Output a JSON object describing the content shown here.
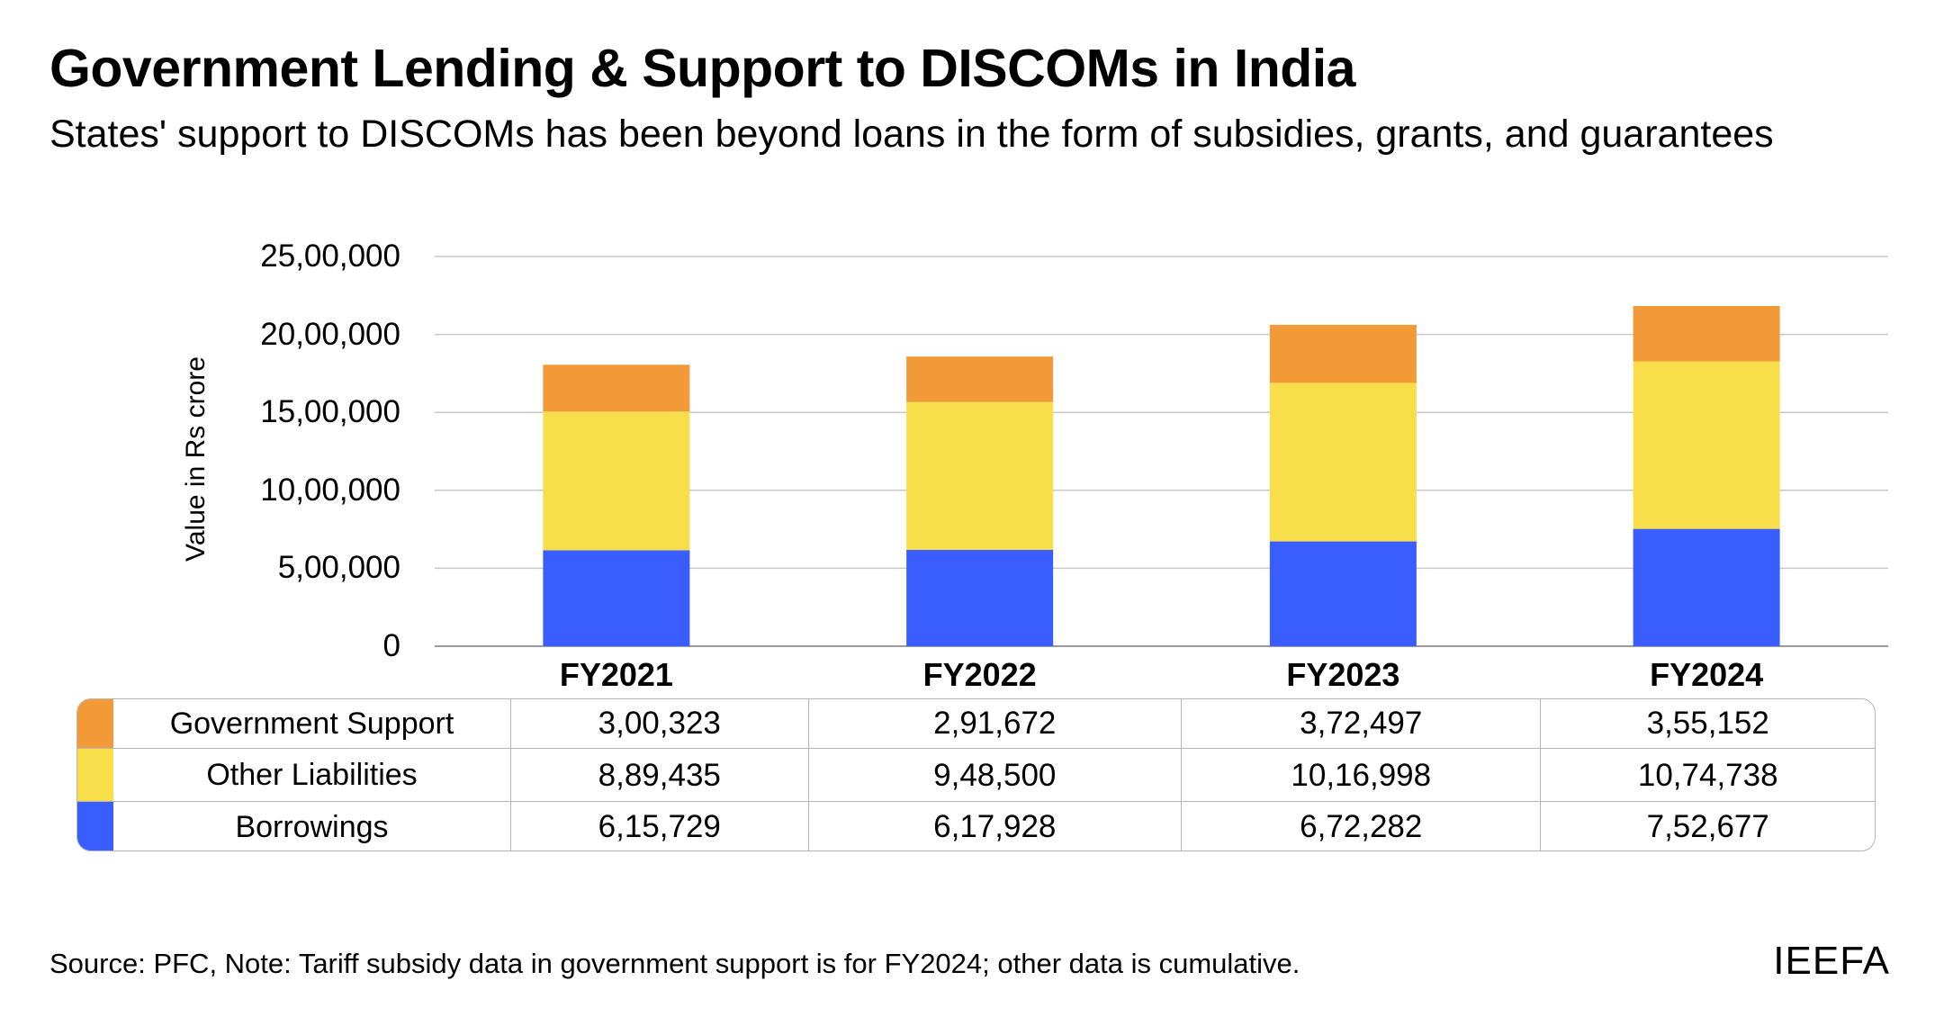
{
  "title": "Government Lending & Support to DISCOMs in India",
  "subtitle": "States' support to DISCOMs has been beyond loans in the form of subsidies, grants, and guarantees",
  "source": "Source: PFC, Note: Tariff subsidy data in government support is for FY2024; other data is cumulative.",
  "brand": "IEEFA",
  "colors": {
    "government_support": "#F29A38",
    "other_liabilities": "#F7DE4A",
    "borrowings": "#3A5DFF",
    "grid": "#c8c8c8"
  },
  "table": {
    "rows": [
      {
        "label": "Government Support",
        "values": [
          "3,00,323",
          "2,91,672",
          "3,72,497",
          "3,55,152"
        ]
      },
      {
        "label": "Other Liabilities",
        "values": [
          "8,89,435",
          "9,48,500",
          "10,16,998",
          "10,74,738"
        ]
      },
      {
        "label": "Borrowings",
        "values": [
          "6,15,729",
          "6,17,928",
          "6,72,282",
          "7,52,677"
        ]
      }
    ]
  },
  "chart_data": {
    "type": "bar",
    "stacked": true,
    "title": "Government Lending & Support to DISCOMs in India",
    "subtitle": "States' support to DISCOMs has been beyond loans in the form of subsidies, grants, and guarantees",
    "ylabel": "Value in Rs crore",
    "xlabel": "",
    "categories": [
      "FY2021",
      "FY2022",
      "FY2023",
      "FY2024"
    ],
    "ylim": [
      0,
      2500000
    ],
    "yticks": [
      0,
      500000,
      1000000,
      1500000,
      2000000,
      2500000
    ],
    "ytick_labels": [
      "0",
      "5,00,000",
      "10,00,000",
      "15,00,000",
      "20,00,000",
      "25,00,000"
    ],
    "grid": true,
    "legend": "table-below",
    "series": [
      {
        "name": "Borrowings",
        "values": [
          615729,
          617928,
          672282,
          752677
        ],
        "color": "#3A5DFF"
      },
      {
        "name": "Other Liabilities",
        "values": [
          889435,
          948500,
          1016998,
          1074738
        ],
        "color": "#F7DE4A"
      },
      {
        "name": "Government Support",
        "values": [
          300323,
          291672,
          372497,
          355152
        ],
        "color": "#F29A38"
      }
    ]
  }
}
